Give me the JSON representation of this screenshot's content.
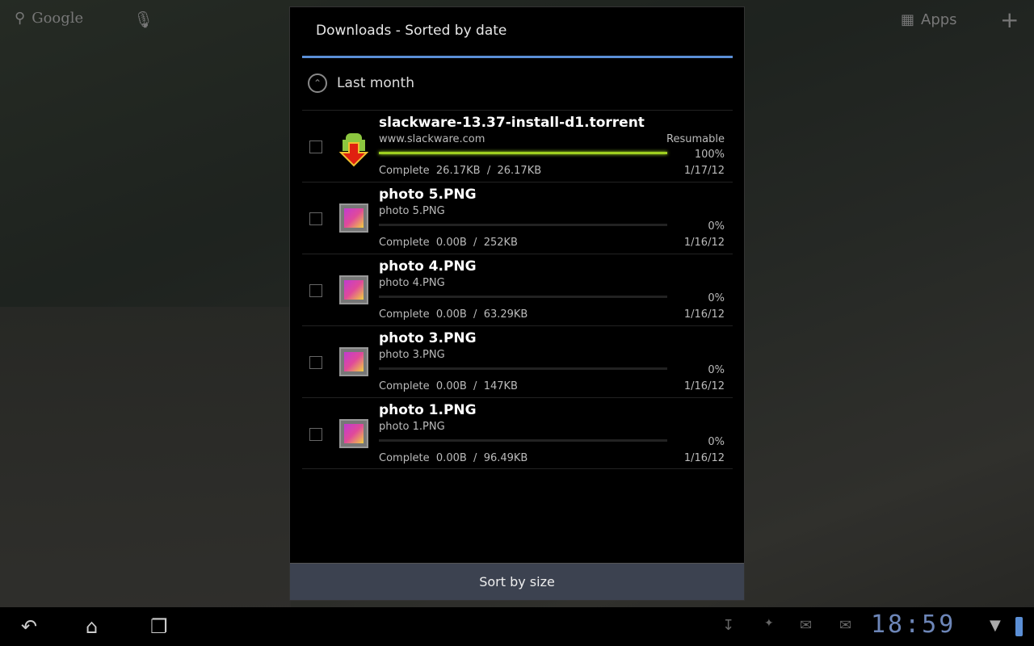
{
  "home": {
    "search_label": "Google",
    "apps_label": "Apps"
  },
  "dialog": {
    "title": "Downloads - Sorted by date",
    "group": "Last month",
    "sort_button": "Sort by size"
  },
  "downloads": [
    {
      "name": "slackware-13.37-install-d1.torrent",
      "source": "www.slackware.com",
      "status": "Complete  26.17KB  /  26.17KB",
      "state": "Resumable",
      "percent": "100%",
      "progress": 100,
      "date": "1/17/12",
      "icon": "android-download-icon"
    },
    {
      "name": "photo 5.PNG",
      "source": "photo 5.PNG",
      "status": "Complete  0.00B  /  252KB",
      "state": "",
      "percent": "0%",
      "progress": 0,
      "date": "1/16/12",
      "icon": "image-file-icon"
    },
    {
      "name": "photo 4.PNG",
      "source": "photo 4.PNG",
      "status": "Complete  0.00B  /  63.29KB",
      "state": "",
      "percent": "0%",
      "progress": 0,
      "date": "1/16/12",
      "icon": "image-file-icon"
    },
    {
      "name": "photo 3.PNG",
      "source": "photo 3.PNG",
      "status": "Complete  0.00B  /  147KB",
      "state": "",
      "percent": "0%",
      "progress": 0,
      "date": "1/16/12",
      "icon": "image-file-icon"
    },
    {
      "name": "photo 1.PNG",
      "source": "photo 1.PNG",
      "status": "Complete  0.00B  /  96.49KB",
      "state": "",
      "percent": "0%",
      "progress": 0,
      "date": "1/16/12",
      "icon": "image-file-icon"
    }
  ],
  "statusbar": {
    "time": "18:59"
  },
  "colors": {
    "accent": "#5b8fd6",
    "progress": "#9fd020",
    "clock": "#6d86b8"
  }
}
